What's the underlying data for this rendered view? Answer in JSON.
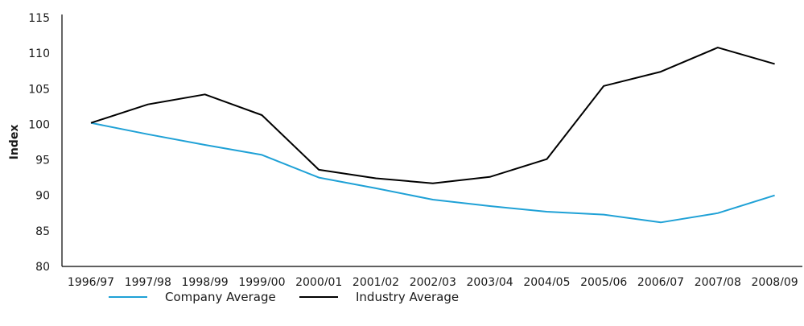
{
  "chart_data": {
    "type": "line",
    "ylabel": "Index",
    "xlabel": "",
    "ylim": [
      80,
      115
    ],
    "yticks": [
      80,
      85,
      90,
      95,
      100,
      105,
      110,
      115
    ],
    "categories": [
      "1996/97",
      "1997/98",
      "1998/99",
      "1999/00",
      "2000/01",
      "2001/02",
      "2002/03",
      "2003/04",
      "2004/05",
      "2005/06",
      "2006/07",
      "2007/08",
      "2008/09"
    ],
    "series": [
      {
        "name": "Company Average",
        "color": "#1fa1d6",
        "values": [
          100.2,
          98.6,
          97.1,
          95.7,
          92.5,
          91.0,
          89.4,
          88.5,
          87.7,
          87.3,
          86.2,
          87.5,
          90.0
        ]
      },
      {
        "name": "Industry Average",
        "color": "#000000",
        "values": [
          100.2,
          102.8,
          104.2,
          101.3,
          93.6,
          92.4,
          91.7,
          92.6,
          95.1,
          105.4,
          107.4,
          110.8,
          108.5
        ]
      }
    ],
    "grid": false,
    "legend_position": "bottom-left"
  }
}
